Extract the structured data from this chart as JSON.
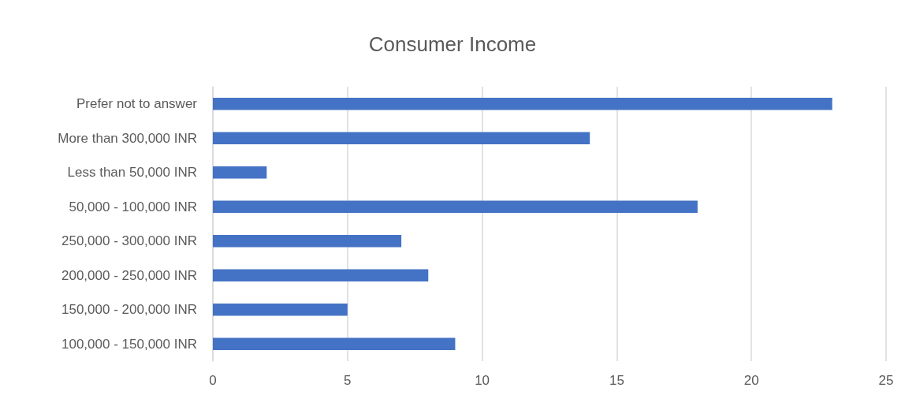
{
  "chart_data": {
    "type": "bar",
    "title": "Consumer Income",
    "orientation": "horizontal",
    "categories": [
      "Prefer not to answer",
      "More than 300,000 INR",
      "Less than 50,000 INR",
      "50,000 - 100,000 INR",
      "250,000 - 300,000 INR",
      "200,000 - 250,000 INR",
      "150,000 - 200,000 INR",
      "100,000 - 150,000 INR"
    ],
    "values": [
      23,
      14,
      2,
      18,
      7,
      8,
      5,
      9
    ],
    "color": "#4472c4",
    "xlim": [
      0,
      25
    ],
    "xticks": [
      0,
      5,
      10,
      15,
      20,
      25
    ],
    "grid": "x"
  }
}
